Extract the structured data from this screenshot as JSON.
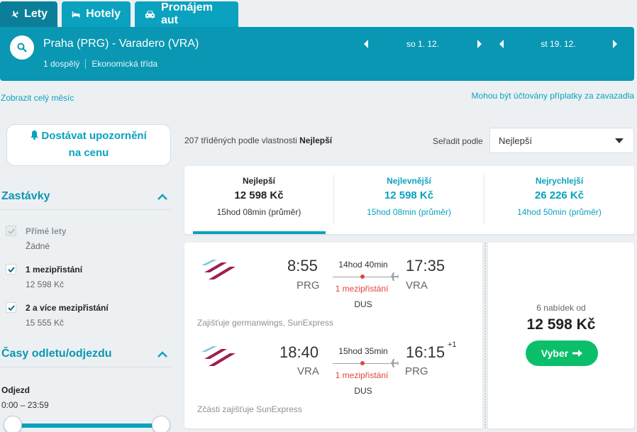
{
  "tabs": [
    {
      "label": "Lety",
      "icon": "plane-icon",
      "active": true
    },
    {
      "label": "Hotely",
      "icon": "bed-icon",
      "active": false
    },
    {
      "label": "Pronájem aut",
      "icon": "car-icon",
      "active": false
    }
  ],
  "search": {
    "route": "Praha (PRG) - Varadero (VRA)",
    "passengers": "1 dospělý",
    "cabin_class": "Ekonomická třída",
    "outbound_date": "so 1. 12.",
    "return_date": "st 19. 12."
  },
  "links": {
    "show_month": "Zobrazit celý měsíc",
    "fees_note": "Mohou být účtovány příplatky za zavazadla"
  },
  "sidebar": {
    "alert_line1": "Dostávat upozornění",
    "alert_line2": "na cenu",
    "stops_title": "Zastávky",
    "stops": [
      {
        "label": "Přímé lety",
        "sub": "Žádné",
        "checked": true,
        "disabled": true
      },
      {
        "label": "1 mezipřistání",
        "sub": "12 598 Kč",
        "checked": true,
        "disabled": false
      },
      {
        "label": "2 a více mezipřistání",
        "sub": "15 555 Kč",
        "checked": true,
        "disabled": false
      }
    ],
    "times_title": "Časy odletu/odjezdu",
    "departure_title": "Odjezd",
    "departure_range": "0:00 – 23:59"
  },
  "results": {
    "count_text": "207 tříděných podle vlastnosti",
    "count_sort": "Nejlepší",
    "sort_label": "Seřadit podle",
    "sort_value": "Nejlepší"
  },
  "summary": [
    {
      "title": "Nejlepší",
      "price": "12 598 Kč",
      "duration": "15hod 08min (průměr)",
      "active": true
    },
    {
      "title": "Nejlevnější",
      "price": "12 598 Kč",
      "duration": "15hod 08min (průměr)",
      "active": false
    },
    {
      "title": "Nejrychlejší",
      "price": "26 226 Kč",
      "duration": "14hod 50min (průměr)",
      "active": false
    }
  ],
  "card": {
    "outbound": {
      "dep_time": "8:55",
      "dep_code": "PRG",
      "duration": "14hod 40min",
      "stops": "1 mezipřistání",
      "via": "DUS",
      "arr_time": "17:35",
      "arr_code": "VRA",
      "operator": "Zajišťuje germanwings, SunExpress"
    },
    "inbound": {
      "dep_time": "18:40",
      "dep_code": "VRA",
      "duration": "15hod 35min",
      "stops": "1 mezipřistání",
      "via": "DUS",
      "arr_time": "16:15",
      "arr_plus": "+1",
      "arr_code": "PRG",
      "operator": "Zčásti zajišťuje SunExpress"
    },
    "offers": "6 nabídek od",
    "price": "12 598 Kč",
    "select_label": "Vyber"
  },
  "colors": {
    "accent": "#0aa2bf",
    "band": "#0a97b3",
    "select": "#0bbf6a",
    "stops": "#e1453c"
  }
}
